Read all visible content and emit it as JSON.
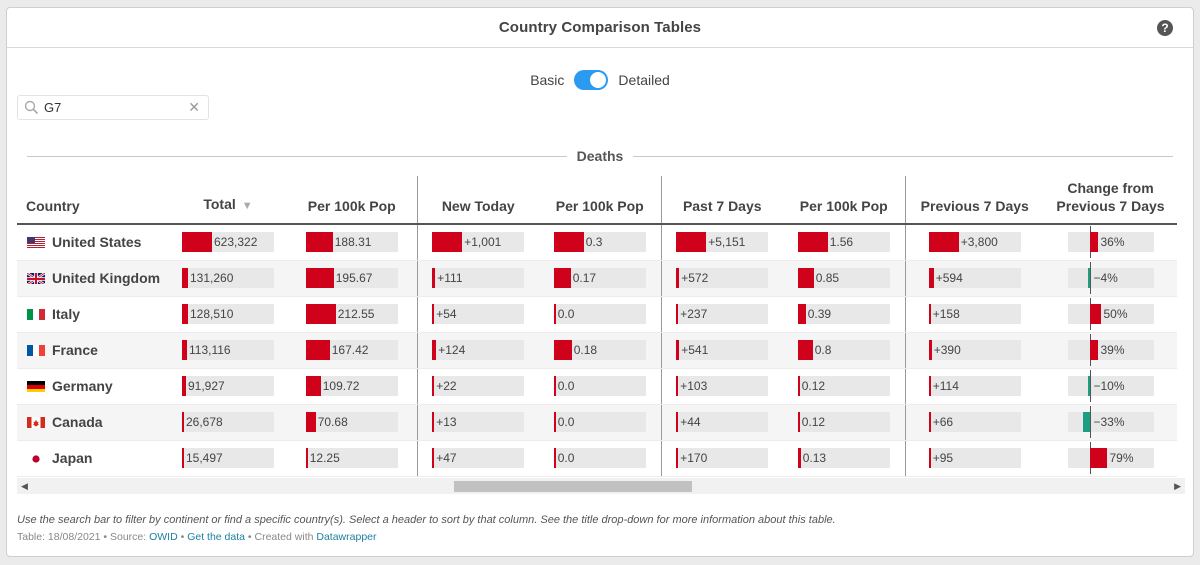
{
  "header": {
    "title": "Country Comparison Tables",
    "help_icon": "help-icon"
  },
  "toggle": {
    "left_label": "Basic",
    "right_label": "Detailed",
    "state": "Detailed"
  },
  "search": {
    "value": "G7",
    "placeholder": ""
  },
  "group_title": "Deaths",
  "columns": {
    "country": "Country",
    "total": "Total",
    "total_sort": "▼",
    "per100k_total": "Per 100k Pop",
    "new_today": "New Today",
    "per100k_new": "Per 100k Pop",
    "past7": "Past 7 Days",
    "per100k_7": "Per 100k Pop",
    "prev7": "Previous 7 Days",
    "change_line1": "Change from",
    "change_line2": "Previous 7 Days"
  },
  "colors": {
    "bar": "#d0021b",
    "negative": "#1b9e82",
    "toggle": "#2a9bf0",
    "link": "#1d81a2"
  },
  "rows": [
    {
      "country": "United States",
      "flag": "us-flag",
      "total": "623,322",
      "total_v": 623322,
      "p1": "188.31",
      "p1_v": 188.31,
      "new": "+1,001",
      "new_v": 1001,
      "p2": "0.3",
      "p2_v": 0.3,
      "w7": "+5,151",
      "w7_v": 5151,
      "p3": "1.56",
      "p3_v": 1.56,
      "prev": "+3,800",
      "prev_v": 3800,
      "chg": "36%",
      "chg_v": 36
    },
    {
      "country": "United Kingdom",
      "flag": "uk-flag",
      "total": "131,260",
      "total_v": 131260,
      "p1": "195.67",
      "p1_v": 195.67,
      "new": "+111",
      "new_v": 111,
      "p2": "0.17",
      "p2_v": 0.17,
      "w7": "+572",
      "w7_v": 572,
      "p3": "0.85",
      "p3_v": 0.85,
      "prev": "+594",
      "prev_v": 594,
      "chg": "−4%",
      "chg_v": -4
    },
    {
      "country": "Italy",
      "flag": "it-flag",
      "total": "128,510",
      "total_v": 128510,
      "p1": "212.55",
      "p1_v": 212.55,
      "new": "+54",
      "new_v": 54,
      "p2": "0.0",
      "p2_v": 0.0,
      "w7": "+237",
      "w7_v": 237,
      "p3": "0.39",
      "p3_v": 0.39,
      "prev": "+158",
      "prev_v": 158,
      "chg": "50%",
      "chg_v": 50
    },
    {
      "country": "France",
      "flag": "fr-flag",
      "total": "113,116",
      "total_v": 113116,
      "p1": "167.42",
      "p1_v": 167.42,
      "new": "+124",
      "new_v": 124,
      "p2": "0.18",
      "p2_v": 0.18,
      "w7": "+541",
      "w7_v": 541,
      "p3": "0.8",
      "p3_v": 0.8,
      "prev": "+390",
      "prev_v": 390,
      "chg": "39%",
      "chg_v": 39
    },
    {
      "country": "Germany",
      "flag": "de-flag",
      "total": "91,927",
      "total_v": 91927,
      "p1": "109.72",
      "p1_v": 109.72,
      "new": "+22",
      "new_v": 22,
      "p2": "0.0",
      "p2_v": 0.0,
      "w7": "+103",
      "w7_v": 103,
      "p3": "0.12",
      "p3_v": 0.12,
      "prev": "+114",
      "prev_v": 114,
      "chg": "−10%",
      "chg_v": -10
    },
    {
      "country": "Canada",
      "flag": "ca-flag",
      "total": "26,678",
      "total_v": 26678,
      "p1": "70.68",
      "p1_v": 70.68,
      "new": "+13",
      "new_v": 13,
      "p2": "0.0",
      "p2_v": 0.0,
      "w7": "+44",
      "w7_v": 44,
      "p3": "0.12",
      "p3_v": 0.12,
      "prev": "+66",
      "prev_v": 66,
      "chg": "−33%",
      "chg_v": -33
    },
    {
      "country": "Japan",
      "flag": "jp-flag",
      "total": "15,497",
      "total_v": 15497,
      "p1": "12.25",
      "p1_v": 12.25,
      "new": "+47",
      "new_v": 47,
      "p2": "0.0",
      "p2_v": 0.0,
      "w7": "+170",
      "w7_v": 170,
      "p3": "0.13",
      "p3_v": 0.13,
      "prev": "+95",
      "prev_v": 95,
      "chg": "79%",
      "chg_v": 79
    }
  ],
  "footer": {
    "note": "Use the search bar to filter by continent or find a specific country(s). Select a header to sort by that column. See the title drop-down for more information about this table.",
    "meta_prefix": "Table: 18/08/2021 • Source: ",
    "source_link": "OWID",
    "sep": " • ",
    "data_link": "Get the data",
    "created_prefix": " • Created with ",
    "tool_link": "Datawrapper"
  }
}
